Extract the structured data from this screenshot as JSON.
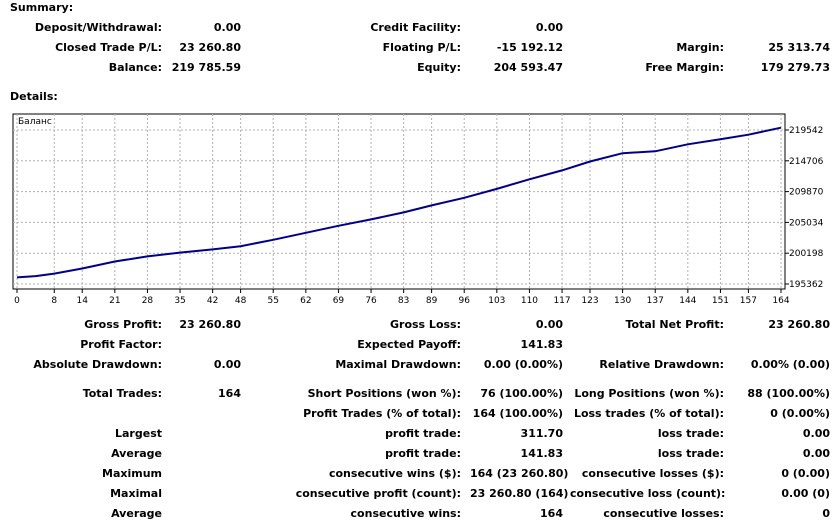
{
  "summary": {
    "title": "Summary:",
    "deposit_label": "Deposit/Withdrawal:",
    "deposit_value": "0.00",
    "credit_label": "Credit Facility:",
    "credit_value": "0.00",
    "closed_label": "Closed Trade P/L:",
    "closed_value": "23 260.80",
    "floating_label": "Floating P/L:",
    "floating_value": "-15 192.12",
    "margin_label": "Margin:",
    "margin_value": "25 313.74",
    "balance_label": "Balance:",
    "balance_value": "219 785.59",
    "equity_label": "Equity:",
    "equity_value": "204 593.47",
    "free_margin_label": "Free Margin:",
    "free_margin_value": "179 279.73"
  },
  "details": {
    "title": "Details:"
  },
  "chart_data": {
    "type": "line",
    "title": "Баланс",
    "x_ticks": [
      "0",
      "8",
      "14",
      "21",
      "28",
      "35",
      "42",
      "48",
      "55",
      "62",
      "69",
      "76",
      "83",
      "89",
      "96",
      "103",
      "110",
      "117",
      "123",
      "130",
      "137",
      "144",
      "151",
      "157",
      "164"
    ],
    "y_ticks": [
      "219542",
      "214706",
      "209870",
      "205034",
      "200198",
      "195362"
    ],
    "ylim": [
      195362,
      219542
    ],
    "xlim": [
      0,
      164
    ],
    "grid": true,
    "line_color": "#00008b",
    "series": [
      {
        "x": [
          0,
          4,
          8,
          14,
          21,
          28,
          35,
          42,
          48,
          55,
          62,
          69,
          76,
          83,
          89,
          96,
          103,
          110,
          117,
          123,
          130,
          137,
          144,
          151,
          157,
          164
        ],
        "y": [
          196400,
          196600,
          197000,
          197800,
          198900,
          199700,
          200300,
          200800,
          201300,
          202300,
          203400,
          204500,
          205500,
          206600,
          207700,
          208900,
          210300,
          211800,
          213200,
          214600,
          215900,
          216200,
          217300,
          218100,
          218800,
          219900
        ]
      }
    ]
  },
  "stats": {
    "gross_profit_label": "Gross Profit:",
    "gross_profit_value": "23 260.80",
    "gross_loss_label": "Gross Loss:",
    "gross_loss_value": "0.00",
    "total_net_profit_label": "Total Net Profit:",
    "total_net_profit_value": "23 260.80",
    "profit_factor_label": "Profit Factor:",
    "profit_factor_value": "",
    "expected_payoff_label": "Expected Payoff:",
    "expected_payoff_value": "141.83",
    "absolute_drawdown_label": "Absolute Drawdown:",
    "absolute_drawdown_value": "0.00",
    "maximal_drawdown_label": "Maximal Drawdown:",
    "maximal_drawdown_value": "0.00 (0.00%)",
    "relative_drawdown_label": "Relative Drawdown:",
    "relative_drawdown_value": "0.00% (0.00)",
    "total_trades_label": "Total Trades:",
    "total_trades_value": "164",
    "short_positions_label": "Short Positions (won %):",
    "short_positions_value": "76 (100.00%)",
    "long_positions_label": "Long Positions (won %):",
    "long_positions_value": "88 (100.00%)",
    "profit_trades_label": "Profit Trades (% of total):",
    "profit_trades_value": "164 (100.00%)",
    "loss_trades_label": "Loss trades (% of total):",
    "loss_trades_value": "0 (0.00%)",
    "largest_label": "Largest",
    "largest_profit_label": "profit trade:",
    "largest_profit_value": "311.70",
    "largest_loss_label": "loss trade:",
    "largest_loss_value": "0.00",
    "average_label": "Average",
    "average_profit_label": "profit trade:",
    "average_profit_value": "141.83",
    "average_loss_label": "loss trade:",
    "average_loss_value": "0.00",
    "maximum_label": "Maximum",
    "max_cons_wins_label": "consecutive wins ($):",
    "max_cons_wins_value": "164 (23 260.80)",
    "max_cons_losses_label": "consecutive losses ($):",
    "max_cons_losses_value": "0 (0.00)",
    "maximal_label": "Maximal",
    "maximal_cons_profit_label": "consecutive profit (count):",
    "maximal_cons_profit_value": "23 260.80 (164)",
    "maximal_cons_loss_label": "consecutive loss (count):",
    "maximal_cons_loss_value": "0.00 (0)",
    "average2_label": "Average",
    "avg_cons_wins_label": "consecutive wins:",
    "avg_cons_wins_value": "164",
    "avg_cons_losses_label": "consecutive losses:",
    "avg_cons_losses_value": "0"
  }
}
